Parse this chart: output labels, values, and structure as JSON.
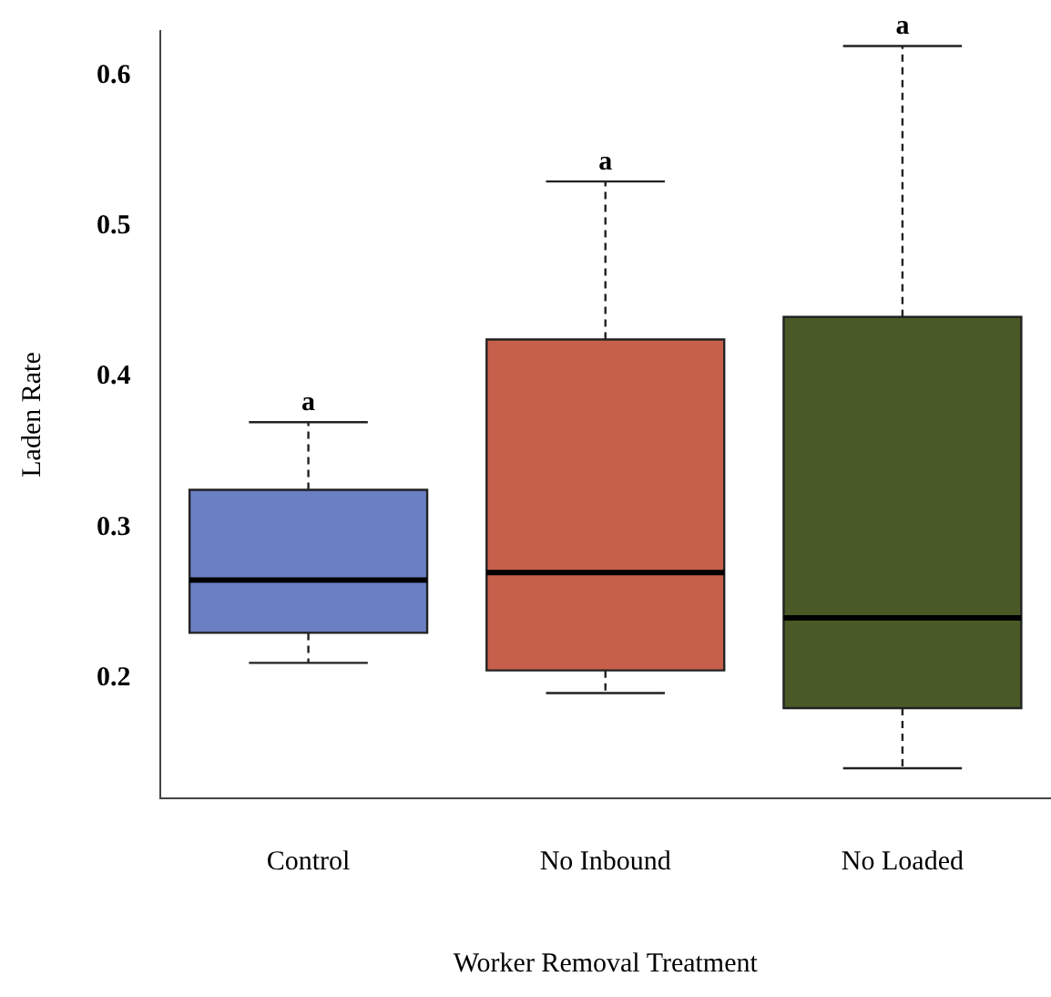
{
  "chart_data": {
    "type": "box",
    "xlabel": "Worker Removal Treatment",
    "ylabel": "Laden Rate",
    "categories": [
      "Control",
      "No Inbound",
      "No Loaded"
    ],
    "boxes": [
      {
        "low": 0.21,
        "q1": 0.23,
        "median": 0.265,
        "q3": 0.325,
        "high": 0.37
      },
      {
        "low": 0.19,
        "q1": 0.205,
        "median": 0.27,
        "q3": 0.425,
        "high": 0.53
      },
      {
        "low": 0.14,
        "q1": 0.18,
        "median": 0.24,
        "q3": 0.44,
        "high": 0.62
      }
    ],
    "colors": [
      "#6b7fc4",
      "#c6604b",
      "#4a5a26"
    ],
    "ylim": [
      0.12,
      0.63
    ],
    "yticks": [
      0.2,
      0.3,
      0.4,
      0.5,
      0.6
    ],
    "grid": false,
    "legend": false,
    "annotations": [
      {
        "text": "a",
        "x": "Control",
        "y": 0.37
      },
      {
        "text": "a",
        "x": "No Inbound",
        "y": 0.53
      },
      {
        "text": "a",
        "x": "No Loaded",
        "y": 0.62
      }
    ]
  }
}
